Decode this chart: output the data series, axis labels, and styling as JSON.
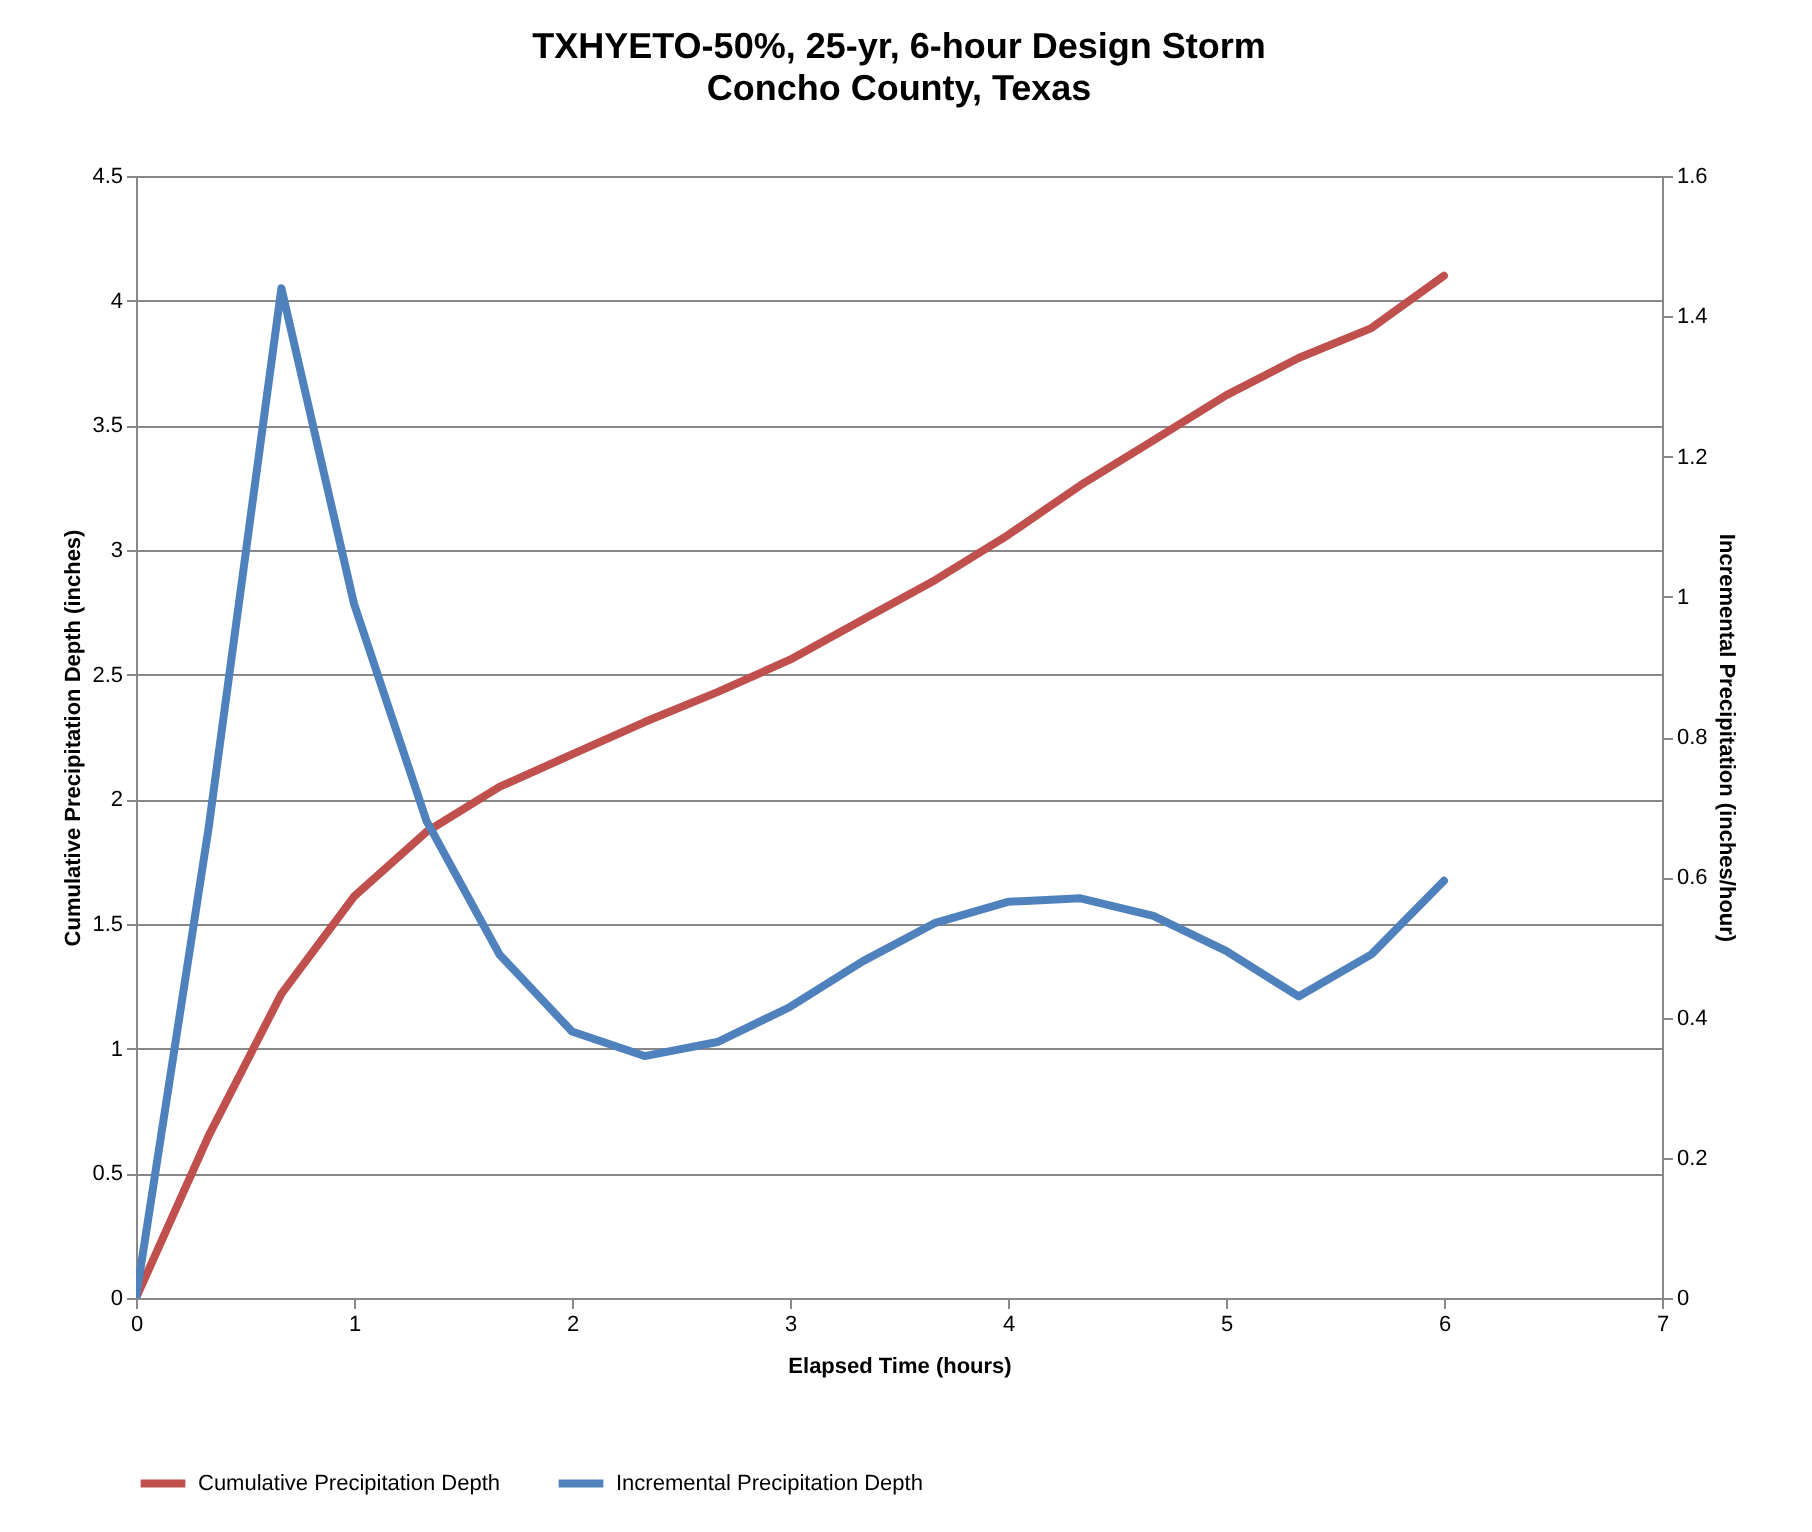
{
  "chart_data": {
    "type": "line",
    "title": "TXHYETO-50%, 25-yr, 6-hour Design Storm",
    "subtitle": "Concho County, Texas",
    "xlabel": "Elapsed Time (hours)",
    "ylabel": "Cumulative  Precipitation Depth (inches)",
    "y2label": "Incremental Precipitation (inches/hour)",
    "x": [
      0,
      0.333,
      0.667,
      1,
      1.333,
      1.667,
      2,
      2.333,
      2.667,
      3,
      3.333,
      3.667,
      4,
      4.333,
      4.667,
      5,
      5.333,
      5.667,
      6
    ],
    "series": [
      {
        "name": "Cumulative Precipitation Depth",
        "color": "#c0504d",
        "values": [
          0,
          0.65,
          1.22,
          1.61,
          1.87,
          2.05,
          2.18,
          2.31,
          2.43,
          2.56,
          2.72,
          2.88,
          3.06,
          3.26,
          3.44,
          3.62,
          3.77,
          3.89,
          4.1
        ]
      },
      {
        "name": "Incremental Precipitation Depth",
        "color": "#4f81bd",
        "axis": "y2",
        "values": [
          0,
          0.67,
          1.44,
          0.99,
          0.68,
          0.49,
          0.38,
          0.345,
          0.365,
          0.415,
          0.48,
          0.535,
          0.565,
          0.57,
          0.545,
          0.495,
          0.43,
          0.49,
          0.595
        ]
      }
    ],
    "xlim": [
      0,
      7
    ],
    "xticks": [
      0,
      1,
      2,
      3,
      4,
      5,
      6,
      7
    ],
    "ylim": [
      0,
      4.5
    ],
    "yticks": [
      0,
      0.5,
      1,
      1.5,
      2,
      2.5,
      3,
      3.5,
      4,
      4.5
    ],
    "y2lim": [
      0,
      1.6
    ],
    "y2ticks": [
      0,
      0.2,
      0.4,
      0.6,
      0.8,
      1,
      1.2,
      1.4,
      1.6
    ],
    "grid": "y",
    "legend": "bottom",
    "marker": "none",
    "line_style": "solid"
  }
}
